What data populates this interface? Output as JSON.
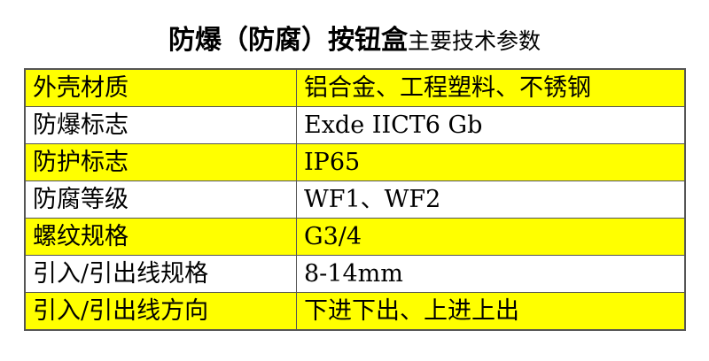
{
  "title": {
    "main": "防爆（防腐）按钮盒",
    "sub": "主要技术参数"
  },
  "highlight_color": "#ffff00",
  "rows": [
    {
      "label": "外壳材质",
      "value": "铝合金、工程塑料、不锈钢",
      "highlight": true
    },
    {
      "label": "防爆标志",
      "value": "Exde IICT6 Gb",
      "highlight": false
    },
    {
      "label": "防护标志",
      "value": "IP65",
      "highlight": true
    },
    {
      "label": "防腐等级",
      "value": "WF1、WF2",
      "highlight": false
    },
    {
      "label": "螺纹规格",
      "value": "G3/4",
      "highlight": true
    },
    {
      "label": "引入/引出线规格",
      "value": "8-14mm",
      "highlight": false
    },
    {
      "label": "引入/引出线方向",
      "value": "下进下出、上进上出",
      "highlight": true
    }
  ]
}
